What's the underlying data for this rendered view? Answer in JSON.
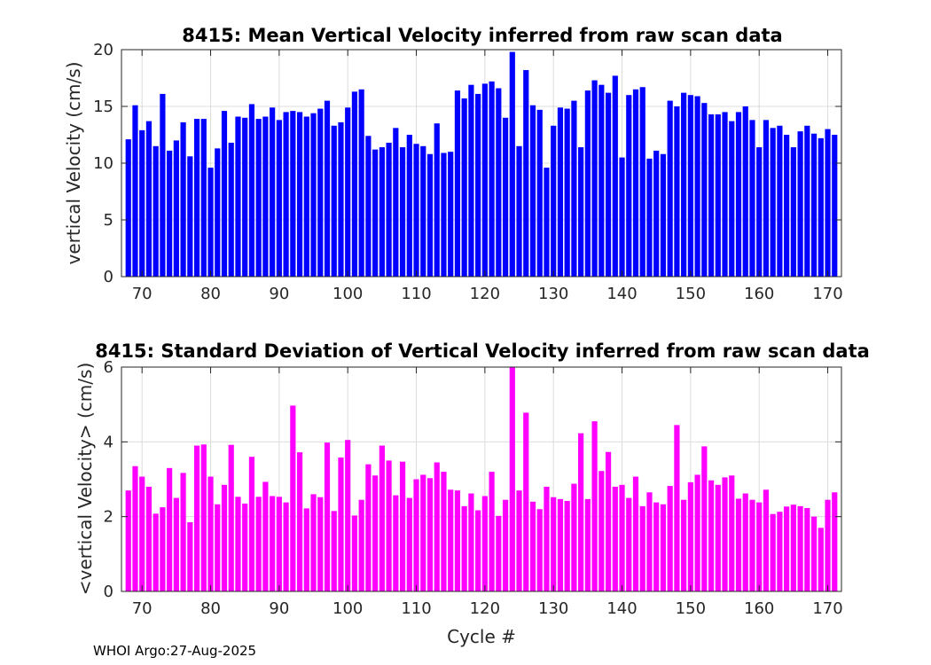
{
  "chart_data": [
    {
      "type": "bar",
      "title": "8415: Mean Vertical Velocity inferred from raw scan data",
      "xlabel": "",
      "ylabel": "vertical Velocity (cm/s)",
      "color": "#0000ff",
      "xlim": [
        67,
        172
      ],
      "ylim": [
        0,
        20
      ],
      "xticks": [
        70,
        80,
        90,
        100,
        110,
        120,
        130,
        140,
        150,
        160,
        170
      ],
      "yticks": [
        0,
        5,
        10,
        15,
        20
      ],
      "grid": true,
      "x": [
        68,
        69,
        70,
        71,
        72,
        73,
        74,
        75,
        76,
        77,
        78,
        79,
        80,
        81,
        82,
        83,
        84,
        85,
        86,
        87,
        88,
        89,
        90,
        91,
        92,
        93,
        94,
        95,
        96,
        97,
        98,
        99,
        100,
        101,
        102,
        103,
        104,
        105,
        106,
        107,
        108,
        109,
        110,
        111,
        112,
        113,
        114,
        115,
        116,
        117,
        118,
        119,
        120,
        121,
        122,
        123,
        124,
        125,
        126,
        127,
        128,
        129,
        130,
        131,
        132,
        133,
        134,
        135,
        136,
        137,
        138,
        139,
        140,
        141,
        142,
        143,
        144,
        145,
        146,
        147,
        148,
        149,
        150,
        151,
        152,
        153,
        154,
        155,
        156,
        157,
        158,
        159,
        160,
        161,
        162,
        163,
        164,
        165,
        166,
        167,
        168,
        169,
        170,
        171
      ],
      "values": [
        12.1,
        15.1,
        12.9,
        13.7,
        11.5,
        16.1,
        11.1,
        12.0,
        13.6,
        10.6,
        13.9,
        13.9,
        9.6,
        11.3,
        14.6,
        11.8,
        14.1,
        14.0,
        15.2,
        13.9,
        14.1,
        14.9,
        13.8,
        14.5,
        14.6,
        14.5,
        14.1,
        14.4,
        14.8,
        15.5,
        13.3,
        13.6,
        14.9,
        16.3,
        16.5,
        12.4,
        11.2,
        11.4,
        11.8,
        13.1,
        11.4,
        12.5,
        11.7,
        11.5,
        10.8,
        13.5,
        10.9,
        11.0,
        16.4,
        15.7,
        16.9,
        16.1,
        17.0,
        17.2,
        16.6,
        14.0,
        19.8,
        11.5,
        18.2,
        15.1,
        14.7,
        9.6,
        13.3,
        14.9,
        14.8,
        15.5,
        11.4,
        16.4,
        17.3,
        16.9,
        16.2,
        17.7,
        10.5,
        16.0,
        16.5,
        16.7,
        10.4,
        11.1,
        10.8,
        15.5,
        15.0,
        16.2,
        16.0,
        15.9,
        15.3,
        14.3,
        14.3,
        14.5,
        13.7,
        14.5,
        15.0,
        13.8,
        11.4,
        13.8,
        13.1,
        13.3,
        12.5,
        11.4,
        12.8,
        13.3,
        12.6,
        12.2,
        13.0,
        12.5
      ]
    },
    {
      "type": "bar",
      "title": "8415: Standard Deviation of Vertical Velocity inferred from raw scan data",
      "xlabel": "Cycle #",
      "ylabel": "<vertical Velocity> (cm/s)",
      "color": "#ff00ff",
      "xlim": [
        67,
        172
      ],
      "ylim": [
        0,
        6
      ],
      "xticks": [
        70,
        80,
        90,
        100,
        110,
        120,
        130,
        140,
        150,
        160,
        170
      ],
      "yticks": [
        0,
        2,
        4,
        6
      ],
      "grid": true,
      "x": [
        68,
        69,
        70,
        71,
        72,
        73,
        74,
        75,
        76,
        77,
        78,
        79,
        80,
        81,
        82,
        83,
        84,
        85,
        86,
        87,
        88,
        89,
        90,
        91,
        92,
        93,
        94,
        95,
        96,
        97,
        98,
        99,
        100,
        101,
        102,
        103,
        104,
        105,
        106,
        107,
        108,
        109,
        110,
        111,
        112,
        113,
        114,
        115,
        116,
        117,
        118,
        119,
        120,
        121,
        122,
        123,
        124,
        125,
        126,
        127,
        128,
        129,
        130,
        131,
        132,
        133,
        134,
        135,
        136,
        137,
        138,
        139,
        140,
        141,
        142,
        143,
        144,
        145,
        146,
        147,
        148,
        149,
        150,
        151,
        152,
        153,
        154,
        155,
        156,
        157,
        158,
        159,
        160,
        161,
        162,
        163,
        164,
        165,
        166,
        167,
        168,
        169,
        170,
        171
      ],
      "values": [
        2.7,
        3.35,
        3.07,
        2.8,
        2.08,
        2.25,
        3.3,
        2.5,
        3.17,
        1.85,
        3.9,
        3.93,
        3.07,
        2.33,
        2.85,
        3.92,
        2.53,
        2.35,
        3.6,
        2.53,
        2.93,
        2.55,
        2.53,
        2.38,
        4.97,
        3.72,
        2.22,
        2.6,
        2.52,
        3.98,
        2.15,
        3.58,
        4.05,
        2.03,
        2.45,
        3.4,
        3.1,
        3.9,
        3.5,
        2.57,
        3.47,
        2.5,
        3.0,
        3.12,
        3.03,
        3.45,
        3.2,
        2.72,
        2.7,
        2.28,
        2.62,
        2.17,
        2.55,
        3.2,
        2.02,
        2.45,
        6.0,
        2.7,
        4.78,
        2.4,
        2.2,
        2.8,
        2.52,
        2.47,
        2.42,
        2.88,
        4.23,
        2.47,
        4.55,
        3.22,
        3.73,
        2.8,
        2.85,
        2.5,
        3.07,
        2.28,
        2.65,
        2.38,
        2.33,
        2.82,
        4.45,
        2.45,
        2.92,
        3.12,
        3.88,
        2.97,
        2.85,
        3.05,
        3.1,
        2.48,
        2.62,
        2.45,
        2.38,
        2.72,
        2.07,
        2.13,
        2.27,
        2.32,
        2.28,
        2.23,
        2.0,
        1.7,
        2.45,
        2.65
      ]
    }
  ],
  "footer": "WHOI Argo:27-Aug-2025"
}
